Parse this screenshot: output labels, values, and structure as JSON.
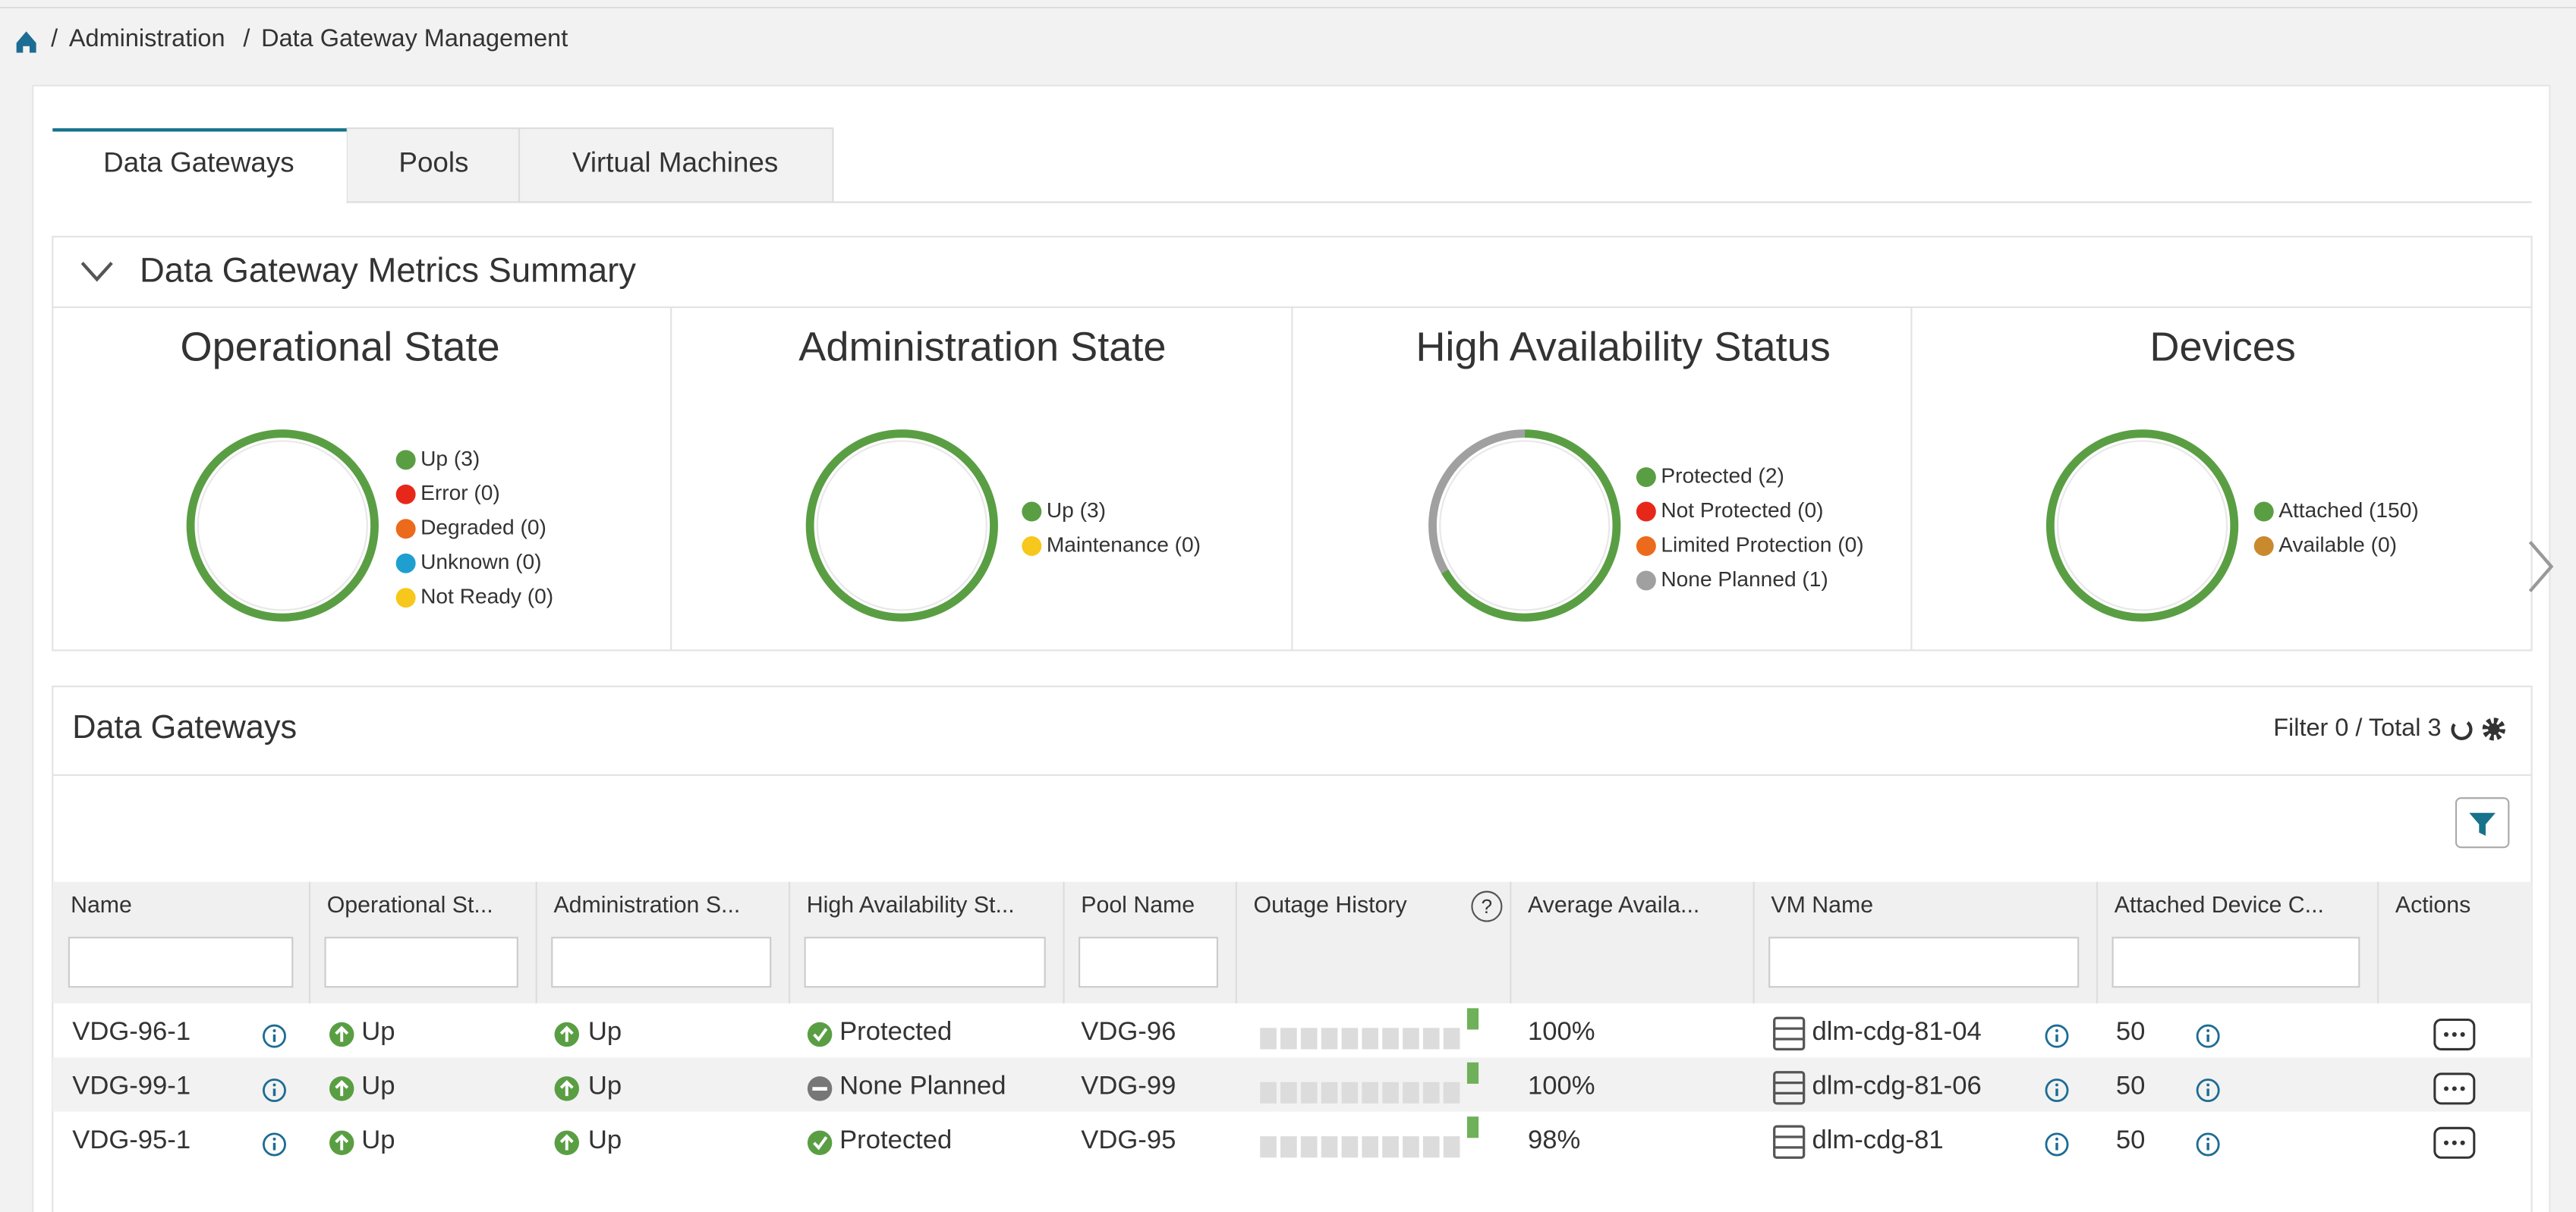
{
  "breadcrumb": [
    "Administration",
    "Data Gateway Management"
  ],
  "tabs": [
    "Data Gateways",
    "Pools",
    "Virtual Machines"
  ],
  "metrics": {
    "title": "Data Gateway Metrics Summary",
    "panels": [
      {
        "title": "Operational State",
        "items": [
          {
            "label": "Up (3)",
            "value": 3,
            "color": "#5a9e44"
          },
          {
            "label": "Error (0)",
            "value": 0,
            "color": "#e8271b"
          },
          {
            "label": "Degraded (0)",
            "value": 0,
            "color": "#ec6a1c"
          },
          {
            "label": "Unknown (0)",
            "value": 0,
            "color": "#1e9fd0"
          },
          {
            "label": "Not Ready (0)",
            "value": 0,
            "color": "#f7c81b"
          }
        ]
      },
      {
        "title": "Administration State",
        "items": [
          {
            "label": "Up (3)",
            "value": 3,
            "color": "#5a9e44"
          },
          {
            "label": "Maintenance (0)",
            "value": 0,
            "color": "#f7c81b"
          }
        ]
      },
      {
        "title": "High Availability Status",
        "items": [
          {
            "label": "Protected (2)",
            "value": 2,
            "color": "#5a9e44"
          },
          {
            "label": "Not Protected (0)",
            "value": 0,
            "color": "#e8271b"
          },
          {
            "label": "Limited Protection (0)",
            "value": 0,
            "color": "#ec6a1c"
          },
          {
            "label": "None Planned (1)",
            "value": 1,
            "color": "#a0a0a0"
          }
        ]
      },
      {
        "title": "Devices",
        "items": [
          {
            "label": "Attached (150)",
            "value": 150,
            "color": "#5a9e44"
          },
          {
            "label": "Available (0)",
            "value": 0,
            "color": "#c98a2e"
          }
        ]
      }
    ]
  },
  "gateways": {
    "title": "Data Gateways",
    "summary": "Filter 0 / Total 3",
    "columns": [
      "Name",
      "Operational St...",
      "Administration S...",
      "High Availability St...",
      "Pool Name",
      "Outage History",
      "Average Availa...",
      "VM Name",
      "Attached Device C...",
      "Actions"
    ],
    "rows": [
      {
        "name": "VDG-96-1",
        "operational": "Up",
        "administration": "Up",
        "ha": "Protected",
        "ha_icon": "check",
        "pool": "VDG-96",
        "average": "100%",
        "vm": "dlm-cdg-81-04",
        "attached": "50"
      },
      {
        "name": "VDG-99-1",
        "operational": "Up",
        "administration": "Up",
        "ha": "None Planned",
        "ha_icon": "minus",
        "pool": "VDG-99",
        "average": "100%",
        "vm": "dlm-cdg-81-06",
        "attached": "50"
      },
      {
        "name": "VDG-95-1",
        "operational": "Up",
        "administration": "Up",
        "ha": "Protected",
        "ha_icon": "check",
        "pool": "VDG-95",
        "average": "98%",
        "vm": "dlm-cdg-81",
        "attached": "50"
      }
    ]
  }
}
